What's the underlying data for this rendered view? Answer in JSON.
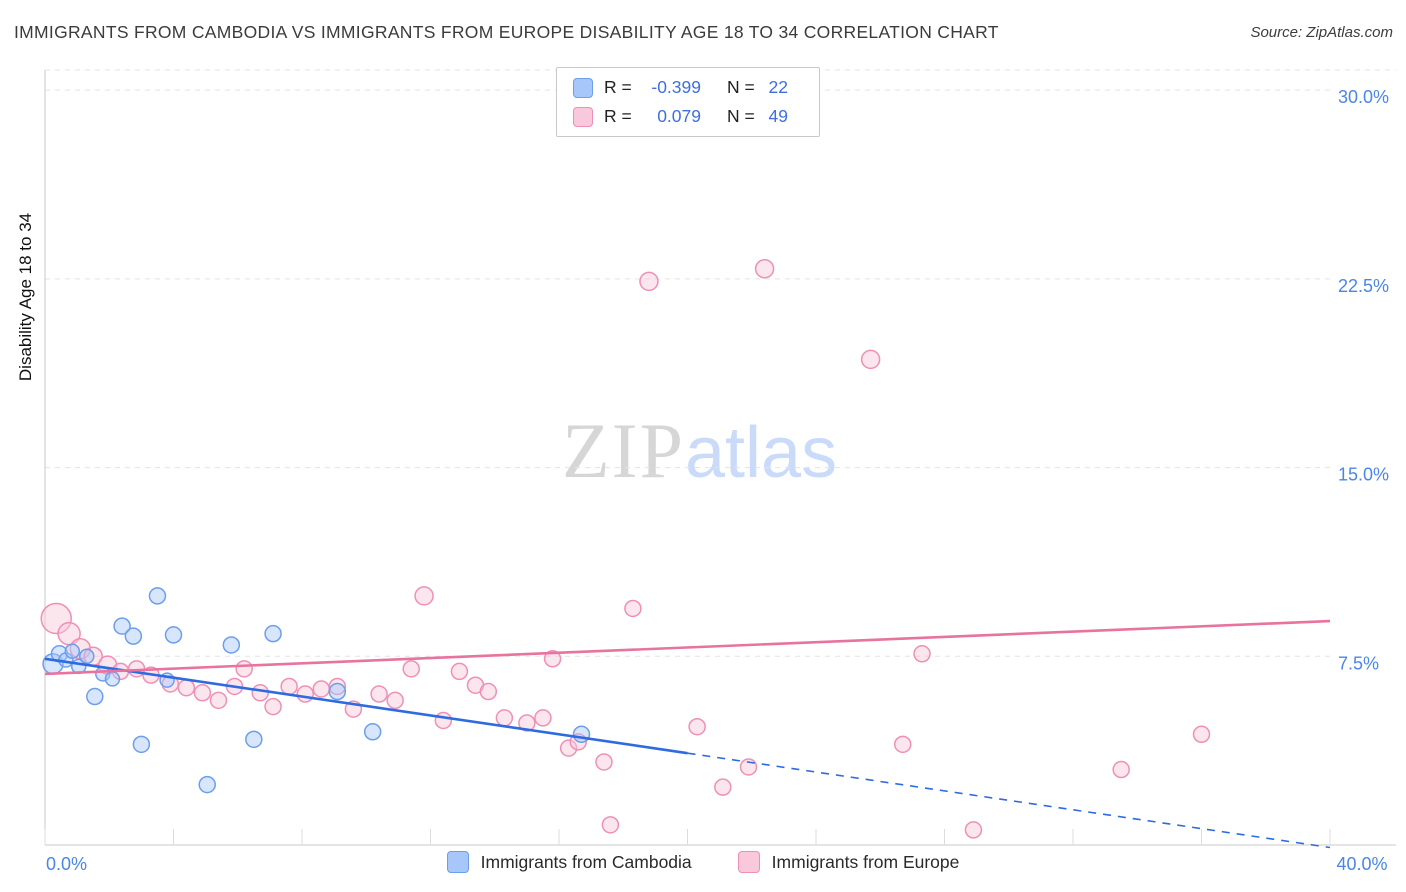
{
  "header": {
    "title": "IMMIGRANTS FROM CAMBODIA VS IMMIGRANTS FROM EUROPE DISABILITY AGE 18 TO 34 CORRELATION CHART",
    "source": "Source: ZipAtlas.com"
  },
  "watermark": {
    "part1": "ZIP",
    "part2": "atlas"
  },
  "axes": {
    "y_label": "Disability Age 18 to 34"
  },
  "stats": {
    "rows": [
      {
        "r_label": "R =",
        "r_value": "-0.399",
        "n_label": "N =",
        "n_value": "22"
      },
      {
        "r_label": "R =",
        "r_value": "0.079",
        "n_label": "N =",
        "n_value": "49"
      }
    ]
  },
  "legend": {
    "items": [
      {
        "label": "Immigrants from Cambodia"
      },
      {
        "label": "Immigrants from Europe"
      }
    ]
  },
  "chart_data": {
    "type": "scatter",
    "title": "IMMIGRANTS FROM CAMBODIA VS IMMIGRANTS FROM EUROPE DISABILITY AGE 18 TO 34 CORRELATION CHART",
    "xlabel": "",
    "ylabel": "Disability Age 18 to 34",
    "xlim": [
      0,
      40
    ],
    "ylim": [
      0,
      30.8
    ],
    "x_tick_step": 4,
    "x_min_label": "0.0%",
    "x_max_label": "40.0%",
    "grid": "dashed-horizontal",
    "legend_position": "bottom",
    "grid_color": "#e3e3e3",
    "axis_color": "#c8c8c8",
    "x_tick_color": "#dcdcdc",
    "tick_label_color": "#4a86e8",
    "y_gridlines": [
      {
        "value": 30,
        "label": "30.0%"
      },
      {
        "value": 22.5,
        "label": "22.5%"
      },
      {
        "value": 15,
        "label": "15.0%"
      },
      {
        "value": 7.5,
        "label": "7.5%"
      }
    ],
    "series": [
      {
        "name": "Immigrants from Cambodia",
        "r": -0.399,
        "n": 22,
        "fill": "#a7c7fa",
        "stroke": "#6c9eeb",
        "line": "#2e6be0",
        "point_name": "cambodia-point",
        "trend": {
          "x0": 0,
          "y0": 7.4,
          "x1": 40,
          "y1": -0.1,
          "solid_until_x": 20
        },
        "points": [
          [
            0.25,
            7.2,
            10
          ],
          [
            0.45,
            7.6,
            8
          ],
          [
            0.65,
            7.35,
            7
          ],
          [
            0.85,
            7.7,
            7
          ],
          [
            1.05,
            7.1,
            7
          ],
          [
            1.3,
            7.5,
            7
          ],
          [
            1.55,
            5.9,
            8
          ],
          [
            1.8,
            6.8,
            7
          ],
          [
            2.1,
            6.6,
            7
          ],
          [
            2.4,
            8.7,
            8
          ],
          [
            2.75,
            8.3,
            8
          ],
          [
            3.0,
            4.0,
            8
          ],
          [
            3.5,
            9.9,
            8
          ],
          [
            3.8,
            6.55,
            7
          ],
          [
            4.0,
            8.35,
            8
          ],
          [
            5.05,
            2.4,
            8
          ],
          [
            5.8,
            7.95,
            8
          ],
          [
            6.5,
            4.2,
            8
          ],
          [
            7.1,
            8.4,
            8
          ],
          [
            9.1,
            6.1,
            8
          ],
          [
            10.2,
            4.5,
            8
          ],
          [
            16.7,
            4.4,
            8
          ]
        ]
      },
      {
        "name": "Immigrants from Europe",
        "r": 0.079,
        "n": 49,
        "fill": "#f9c8da",
        "stroke": "#f08fb5",
        "line": "#e7739e",
        "point_name": "europe-point",
        "trend": {
          "x0": 0,
          "y0": 6.8,
          "x1": 40,
          "y1": 8.9
        },
        "points": [
          [
            0.35,
            9.0,
            15
          ],
          [
            0.75,
            8.4,
            11
          ],
          [
            1.1,
            7.8,
            10
          ],
          [
            1.5,
            7.5,
            9
          ],
          [
            1.95,
            7.15,
            9
          ],
          [
            2.35,
            6.9,
            8
          ],
          [
            2.85,
            7.0,
            8
          ],
          [
            3.3,
            6.75,
            8
          ],
          [
            3.9,
            6.4,
            8
          ],
          [
            4.4,
            6.25,
            8
          ],
          [
            4.9,
            6.05,
            8
          ],
          [
            5.4,
            5.75,
            8
          ],
          [
            5.9,
            6.3,
            8
          ],
          [
            6.2,
            7.0,
            8
          ],
          [
            6.7,
            6.05,
            8
          ],
          [
            7.1,
            5.5,
            8
          ],
          [
            7.6,
            6.3,
            8
          ],
          [
            8.1,
            6.0,
            8
          ],
          [
            8.6,
            6.2,
            8
          ],
          [
            9.1,
            6.3,
            8
          ],
          [
            9.6,
            5.4,
            8
          ],
          [
            10.4,
            6.0,
            8
          ],
          [
            10.9,
            5.75,
            8
          ],
          [
            11.4,
            7.0,
            8
          ],
          [
            11.8,
            9.9,
            9
          ],
          [
            12.4,
            4.95,
            8
          ],
          [
            12.9,
            6.9,
            8
          ],
          [
            13.4,
            6.35,
            8
          ],
          [
            13.8,
            6.1,
            8
          ],
          [
            14.3,
            5.05,
            8
          ],
          [
            15.0,
            4.85,
            8
          ],
          [
            15.5,
            5.05,
            8
          ],
          [
            15.8,
            7.4,
            8
          ],
          [
            16.3,
            3.85,
            8
          ],
          [
            16.6,
            4.1,
            8
          ],
          [
            17.4,
            3.3,
            8
          ],
          [
            17.6,
            0.8,
            8
          ],
          [
            18.3,
            9.4,
            8
          ],
          [
            18.8,
            22.4,
            9
          ],
          [
            20.3,
            4.7,
            8
          ],
          [
            21.1,
            2.3,
            8
          ],
          [
            21.9,
            3.1,
            8
          ],
          [
            22.4,
            22.9,
            9
          ],
          [
            25.7,
            19.3,
            9
          ],
          [
            26.7,
            4.0,
            8
          ],
          [
            27.3,
            7.6,
            8
          ],
          [
            28.9,
            0.6,
            8
          ],
          [
            33.5,
            3.0,
            8
          ],
          [
            36.0,
            4.4,
            8
          ]
        ]
      }
    ]
  }
}
